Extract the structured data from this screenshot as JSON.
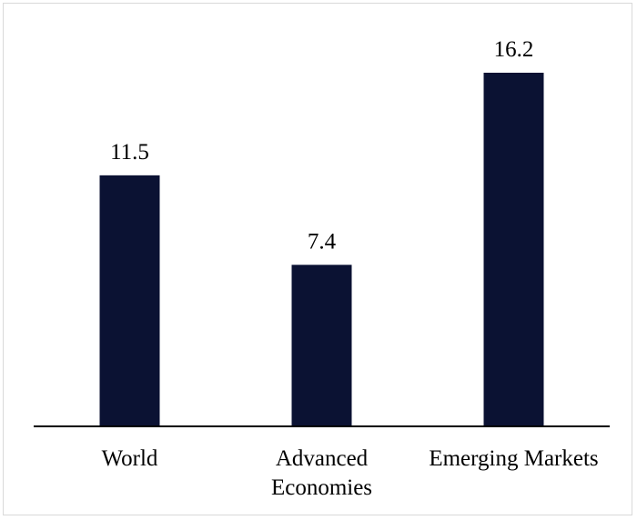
{
  "chart_data": {
    "type": "bar",
    "categories": [
      [
        "World"
      ],
      [
        "Advanced",
        "Economies"
      ],
      [
        "Emerging Markets"
      ]
    ],
    "values": [
      11.5,
      7.4,
      16.2
    ],
    "data_labels": [
      "11.5",
      "7.4",
      "16.2"
    ],
    "title": "",
    "xlabel": "",
    "ylabel": "",
    "ylim": [
      0,
      16.2
    ],
    "grid": false,
    "legend": "none",
    "bar_color": "#0b1233",
    "axis_color": "#000000"
  }
}
